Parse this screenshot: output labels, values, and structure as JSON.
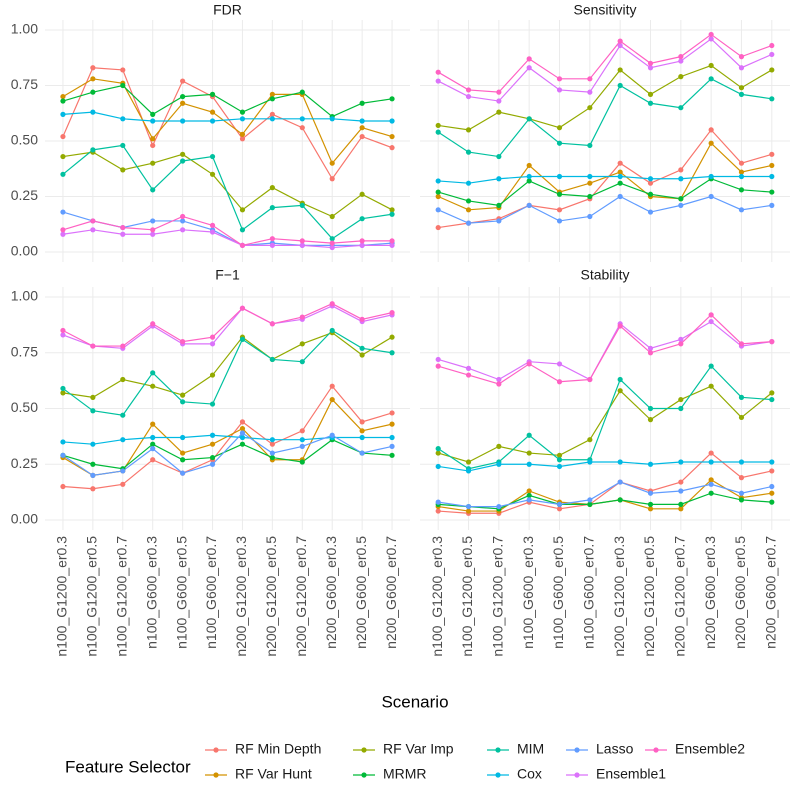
{
  "chart_data": {
    "type": "line",
    "xlabel": "Scenario",
    "legend_title": "Feature Selector",
    "categories": [
      "n100_G1200_er0.3",
      "n100_G1200_er0.5",
      "n100_G1200_er0.7",
      "n100_G600_er0.3",
      "n100_G600_er0.5",
      "n100_G600_er0.7",
      "n200_G1200_er0.3",
      "n200_G1200_er0.5",
      "n200_G1200_er0.7",
      "n200_G600_er0.3",
      "n200_G600_er0.5",
      "n200_G600_er0.7"
    ],
    "ylim": [
      -0.045,
      1.045
    ],
    "yticks": [
      {
        "value": 0,
        "label": "0.00"
      },
      {
        "value": 0.25,
        "label": "0.25"
      },
      {
        "value": 0.5,
        "label": "0.50"
      },
      {
        "value": 0.75,
        "label": "0.75"
      },
      {
        "value": 1,
        "label": "1.00"
      }
    ],
    "grid": true,
    "legend": [
      {
        "name": "RF Min Depth",
        "color": "#F8766D"
      },
      {
        "name": "RF Var Hunt",
        "color": "#D39200"
      },
      {
        "name": "RF Var Imp",
        "color": "#93AA00"
      },
      {
        "name": "MRMR",
        "color": "#00BA38"
      },
      {
        "name": "MIM",
        "color": "#00C19F"
      },
      {
        "name": "Cox",
        "color": "#00B9E3"
      },
      {
        "name": "Lasso",
        "color": "#619CFF"
      },
      {
        "name": "Ensemble1",
        "color": "#DB72FB"
      },
      {
        "name": "Ensemble2",
        "color": "#FF61C3"
      }
    ],
    "panels": [
      {
        "title": "FDR",
        "series": [
          {
            "values": [
              0.52,
              0.83,
              0.82,
              0.48,
              0.77,
              0.7,
              0.51,
              0.62,
              0.56,
              0.33,
              0.52,
              0.47
            ]
          },
          {
            "values": [
              0.7,
              0.78,
              0.76,
              0.51,
              0.67,
              0.63,
              0.53,
              0.71,
              0.71,
              0.4,
              0.56,
              0.52
            ]
          },
          {
            "values": [
              0.43,
              0.45,
              0.37,
              0.4,
              0.44,
              0.35,
              0.19,
              0.29,
              0.22,
              0.16,
              0.26,
              0.19
            ]
          },
          {
            "values": [
              0.68,
              0.72,
              0.75,
              0.62,
              0.7,
              0.71,
              0.63,
              0.69,
              0.72,
              0.61,
              0.67,
              0.69
            ]
          },
          {
            "values": [
              0.35,
              0.46,
              0.48,
              0.28,
              0.41,
              0.43,
              0.1,
              0.2,
              0.21,
              0.06,
              0.15,
              0.17
            ]
          },
          {
            "values": [
              0.62,
              0.63,
              0.6,
              0.59,
              0.59,
              0.59,
              0.6,
              0.6,
              0.6,
              0.6,
              0.59,
              0.59
            ]
          },
          {
            "values": [
              0.18,
              0.14,
              0.11,
              0.14,
              0.14,
              0.1,
              0.03,
              0.04,
              0.03,
              0.03,
              0.03,
              0.04
            ]
          },
          {
            "values": [
              0.08,
              0.1,
              0.08,
              0.08,
              0.1,
              0.09,
              0.03,
              0.03,
              0.03,
              0.02,
              0.03,
              0.03
            ]
          },
          {
            "values": [
              0.1,
              0.14,
              0.11,
              0.1,
              0.16,
              0.12,
              0.03,
              0.06,
              0.05,
              0.04,
              0.05,
              0.05
            ]
          }
        ]
      },
      {
        "title": "Sensitivity",
        "series": [
          {
            "values": [
              0.11,
              0.13,
              0.15,
              0.21,
              0.19,
              0.24,
              0.4,
              0.31,
              0.37,
              0.55,
              0.4,
              0.44
            ]
          },
          {
            "values": [
              0.25,
              0.19,
              0.2,
              0.39,
              0.27,
              0.31,
              0.36,
              0.25,
              0.24,
              0.49,
              0.36,
              0.39
            ]
          },
          {
            "values": [
              0.57,
              0.55,
              0.63,
              0.6,
              0.56,
              0.65,
              0.82,
              0.71,
              0.79,
              0.84,
              0.74,
              0.82
            ]
          },
          {
            "values": [
              0.27,
              0.23,
              0.21,
              0.32,
              0.26,
              0.25,
              0.31,
              0.26,
              0.24,
              0.33,
              0.28,
              0.27
            ]
          },
          {
            "values": [
              0.54,
              0.45,
              0.43,
              0.6,
              0.49,
              0.48,
              0.75,
              0.67,
              0.65,
              0.78,
              0.71,
              0.69
            ]
          },
          {
            "values": [
              0.32,
              0.31,
              0.33,
              0.34,
              0.34,
              0.34,
              0.34,
              0.33,
              0.33,
              0.34,
              0.34,
              0.34
            ]
          },
          {
            "values": [
              0.19,
              0.13,
              0.14,
              0.21,
              0.14,
              0.16,
              0.25,
              0.18,
              0.21,
              0.25,
              0.19,
              0.21
            ]
          },
          {
            "values": [
              0.77,
              0.7,
              0.68,
              0.83,
              0.73,
              0.72,
              0.93,
              0.83,
              0.86,
              0.96,
              0.83,
              0.89
            ]
          },
          {
            "values": [
              0.81,
              0.73,
              0.72,
              0.87,
              0.78,
              0.78,
              0.95,
              0.85,
              0.88,
              0.98,
              0.88,
              0.93
            ]
          }
        ]
      },
      {
        "title": "F−1",
        "series": [
          {
            "values": [
              0.15,
              0.14,
              0.16,
              0.27,
              0.21,
              0.27,
              0.44,
              0.34,
              0.4,
              0.6,
              0.44,
              0.48
            ]
          },
          {
            "values": [
              0.28,
              0.2,
              0.22,
              0.43,
              0.3,
              0.34,
              0.41,
              0.27,
              0.27,
              0.54,
              0.4,
              0.43
            ]
          },
          {
            "values": [
              0.57,
              0.55,
              0.63,
              0.6,
              0.56,
              0.65,
              0.82,
              0.72,
              0.79,
              0.84,
              0.74,
              0.82
            ]
          },
          {
            "values": [
              0.29,
              0.25,
              0.23,
              0.34,
              0.27,
              0.28,
              0.34,
              0.28,
              0.26,
              0.36,
              0.3,
              0.29
            ]
          },
          {
            "values": [
              0.59,
              0.49,
              0.47,
              0.66,
              0.53,
              0.52,
              0.81,
              0.72,
              0.71,
              0.85,
              0.77,
              0.75
            ]
          },
          {
            "values": [
              0.35,
              0.34,
              0.36,
              0.37,
              0.37,
              0.38,
              0.37,
              0.36,
              0.36,
              0.37,
              0.37,
              0.37
            ]
          },
          {
            "values": [
              0.29,
              0.2,
              0.22,
              0.32,
              0.21,
              0.25,
              0.39,
              0.3,
              0.33,
              0.38,
              0.3,
              0.33
            ]
          },
          {
            "values": [
              0.83,
              0.78,
              0.77,
              0.87,
              0.79,
              0.79,
              0.95,
              0.88,
              0.9,
              0.96,
              0.89,
              0.92
            ]
          },
          {
            "values": [
              0.85,
              0.78,
              0.78,
              0.88,
              0.8,
              0.82,
              0.95,
              0.88,
              0.91,
              0.97,
              0.9,
              0.93
            ]
          }
        ]
      },
      {
        "title": "Stability",
        "series": [
          {
            "values": [
              0.04,
              0.03,
              0.03,
              0.08,
              0.05,
              0.07,
              0.17,
              0.13,
              0.17,
              0.3,
              0.19,
              0.22
            ]
          },
          {
            "values": [
              0.06,
              0.04,
              0.04,
              0.13,
              0.08,
              0.07,
              0.09,
              0.05,
              0.05,
              0.18,
              0.1,
              0.12
            ]
          },
          {
            "values": [
              0.3,
              0.26,
              0.33,
              0.3,
              0.29,
              0.36,
              0.58,
              0.45,
              0.54,
              0.6,
              0.46,
              0.57
            ]
          },
          {
            "values": [
              0.07,
              0.06,
              0.05,
              0.11,
              0.07,
              0.07,
              0.09,
              0.07,
              0.07,
              0.12,
              0.09,
              0.08
            ]
          },
          {
            "values": [
              0.32,
              0.23,
              0.26,
              0.38,
              0.27,
              0.27,
              0.63,
              0.5,
              0.5,
              0.69,
              0.55,
              0.54
            ]
          },
          {
            "values": [
              0.24,
              0.22,
              0.25,
              0.25,
              0.24,
              0.26,
              0.26,
              0.25,
              0.26,
              0.26,
              0.26,
              0.26
            ]
          },
          {
            "values": [
              0.08,
              0.06,
              0.06,
              0.09,
              0.07,
              0.09,
              0.17,
              0.12,
              0.13,
              0.16,
              0.12,
              0.15
            ]
          },
          {
            "values": [
              0.72,
              0.68,
              0.63,
              0.71,
              0.7,
              0.63,
              0.88,
              0.77,
              0.81,
              0.89,
              0.78,
              0.8
            ]
          },
          {
            "values": [
              0.69,
              0.65,
              0.61,
              0.7,
              0.62,
              0.63,
              0.87,
              0.75,
              0.79,
              0.92,
              0.79,
              0.8
            ]
          }
        ]
      }
    ]
  }
}
